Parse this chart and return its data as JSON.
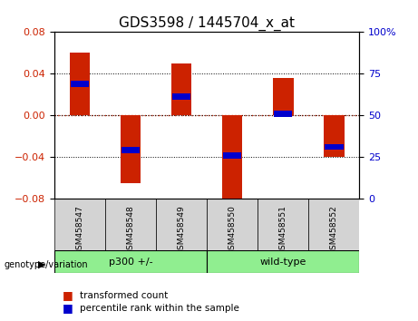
{
  "title": "GDS3598 / 1445704_x_at",
  "samples": [
    "GSM458547",
    "GSM458548",
    "GSM458549",
    "GSM458550",
    "GSM458551",
    "GSM458552"
  ],
  "red_values": [
    0.06,
    -0.065,
    0.05,
    -0.085,
    0.036,
    -0.04
  ],
  "blue_values": [
    0.03,
    -0.033,
    0.018,
    -0.038,
    0.002,
    -0.03
  ],
  "ylim": [
    -0.08,
    0.08
  ],
  "y2lim": [
    0,
    100
  ],
  "yticks": [
    -0.08,
    -0.04,
    0,
    0.04,
    0.08
  ],
  "y2ticks": [
    0,
    25,
    50,
    75,
    100
  ],
  "groups": [
    {
      "label": "p300 +/-",
      "indices": [
        0,
        1,
        2
      ],
      "color": "#90EE90"
    },
    {
      "label": "wild-type",
      "indices": [
        3,
        4,
        5
      ],
      "color": "#90EE90"
    }
  ],
  "group_label": "genotype/variation",
  "bar_width": 0.4,
  "red_color": "#CC2200",
  "blue_color": "#0000CC",
  "bg_color": "#FFFFFF",
  "plot_bg": "#FFFFFF",
  "label_box_color": "#D3D3D3",
  "zero_line_color": "#CC0000",
  "grid_color": "#000000",
  "legend_red": "transformed count",
  "legend_blue": "percentile rank within the sample"
}
